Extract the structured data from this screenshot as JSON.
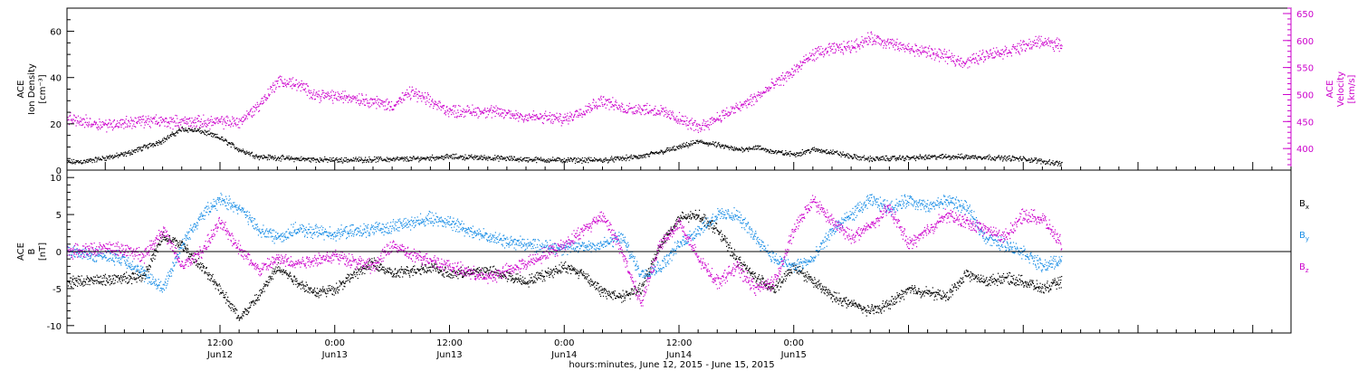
{
  "chart_data": [
    {
      "type": "scatter",
      "panel": "top",
      "ylabel_left": [
        "ACE",
        "Ion Density",
        "[cm⁻³]"
      ],
      "ylabel_right": [
        "ACE",
        "Velocity",
        "[km/s]"
      ],
      "ylim_left": [
        0,
        70
      ],
      "yticks_left": [
        0,
        20,
        40,
        60
      ],
      "ylim_right": [
        360,
        660
      ],
      "yticks_right": [
        400,
        450,
        500,
        550,
        600,
        650
      ],
      "series": [
        {
          "name": "Ion Density",
          "axis": "left",
          "color": "#000000",
          "points": [
            [
              -4,
              3.5
            ],
            [
              -2,
              4
            ],
            [
              0,
              5.5
            ],
            [
              2,
              7
            ],
            [
              4,
              10
            ],
            [
              6,
              13
            ],
            [
              8,
              18
            ],
            [
              10,
              17
            ],
            [
              12,
              14
            ],
            [
              14,
              9
            ],
            [
              16,
              6
            ],
            [
              20,
              5
            ],
            [
              24,
              4.5
            ],
            [
              28,
              4.8
            ],
            [
              32,
              5
            ],
            [
              36,
              6
            ],
            [
              40,
              5.5
            ],
            [
              44,
              4.8
            ],
            [
              48,
              4.5
            ],
            [
              52,
              4.5
            ],
            [
              56,
              6
            ],
            [
              58,
              8
            ],
            [
              60,
              10
            ],
            [
              62,
              12.5
            ],
            [
              64,
              11
            ],
            [
              66,
              9
            ],
            [
              68,
              10
            ],
            [
              70,
              8
            ],
            [
              72,
              7
            ],
            [
              74,
              9
            ],
            [
              76,
              8
            ],
            [
              78,
              6
            ],
            [
              80,
              5
            ],
            [
              84,
              5.5
            ],
            [
              88,
              6
            ],
            [
              92,
              5.8
            ],
            [
              96,
              5
            ],
            [
              100,
              3
            ]
          ]
        },
        {
          "name": "Velocity",
          "axis": "right",
          "color": "#cc00cc",
          "points": [
            [
              -4,
              455
            ],
            [
              0,
              445
            ],
            [
              4,
              452
            ],
            [
              8,
              450
            ],
            [
              12,
              450
            ],
            [
              14,
              450
            ],
            [
              16,
              480
            ],
            [
              18,
              525
            ],
            [
              20,
              520
            ],
            [
              22,
              500
            ],
            [
              26,
              495
            ],
            [
              30,
              480
            ],
            [
              32,
              505
            ],
            [
              36,
              470
            ],
            [
              40,
              470
            ],
            [
              44,
              460
            ],
            [
              48,
              455
            ],
            [
              52,
              490
            ],
            [
              54,
              475
            ],
            [
              56,
              475
            ],
            [
              58,
              470
            ],
            [
              60,
              455
            ],
            [
              62,
              440
            ],
            [
              64,
              458
            ],
            [
              66,
              475
            ],
            [
              68,
              495
            ],
            [
              70,
              520
            ],
            [
              72,
              545
            ],
            [
              74,
              575
            ],
            [
              76,
              585
            ],
            [
              78,
              590
            ],
            [
              80,
              605
            ],
            [
              82,
              595
            ],
            [
              84,
              585
            ],
            [
              86,
              580
            ],
            [
              88,
              570
            ],
            [
              90,
              560
            ],
            [
              92,
              575
            ],
            [
              94,
              580
            ],
            [
              96,
              590
            ],
            [
              98,
              600
            ],
            [
              100,
              590
            ]
          ]
        }
      ]
    },
    {
      "type": "scatter",
      "panel": "bottom",
      "ylabel_left": [
        "ACE",
        "B",
        "[nT]"
      ],
      "ylim": [
        -11,
        11
      ],
      "yticks": [
        -10,
        -5,
        0,
        5,
        10
      ],
      "zero_line": true,
      "legend": [
        {
          "label": "B",
          "sub": "x",
          "color": "#000000"
        },
        {
          "label": "B",
          "sub": "y",
          "color": "#1a8ee6"
        },
        {
          "label": "B",
          "sub": "z",
          "color": "#cc00cc"
        }
      ],
      "series": [
        {
          "name": "Bx",
          "color": "#000000",
          "points": [
            [
              -4,
              -4
            ],
            [
              0,
              -3.8
            ],
            [
              4,
              -3.2
            ],
            [
              6,
              2
            ],
            [
              8,
              1
            ],
            [
              10,
              -2
            ],
            [
              12,
              -5
            ],
            [
              14,
              -9
            ],
            [
              16,
              -6
            ],
            [
              18,
              -2
            ],
            [
              20,
              -4
            ],
            [
              22,
              -5.5
            ],
            [
              24,
              -5
            ],
            [
              26,
              -3
            ],
            [
              28,
              -1.5
            ],
            [
              30,
              -3
            ],
            [
              34,
              -2
            ],
            [
              36,
              -3
            ],
            [
              40,
              -2.5
            ],
            [
              44,
              -4
            ],
            [
              48,
              -2
            ],
            [
              50,
              -3
            ],
            [
              52,
              -5.5
            ],
            [
              54,
              -6
            ],
            [
              56,
              -5
            ],
            [
              58,
              1
            ],
            [
              60,
              4.5
            ],
            [
              62,
              5
            ],
            [
              64,
              3
            ],
            [
              66,
              -1
            ],
            [
              68,
              -3.5
            ],
            [
              70,
              -5
            ],
            [
              72,
              -2
            ],
            [
              74,
              -4
            ],
            [
              76,
              -6
            ],
            [
              78,
              -7
            ],
            [
              80,
              -8
            ],
            [
              82,
              -7
            ],
            [
              84,
              -5
            ],
            [
              86,
              -5.5
            ],
            [
              88,
              -6
            ],
            [
              90,
              -3
            ],
            [
              92,
              -4
            ],
            [
              94,
              -3.5
            ],
            [
              96,
              -4
            ],
            [
              98,
              -5
            ],
            [
              100,
              -4
            ]
          ]
        },
        {
          "name": "By",
          "color": "#1a8ee6",
          "points": [
            [
              -4,
              0
            ],
            [
              0,
              -0.5
            ],
            [
              2,
              -1
            ],
            [
              4,
              -3
            ],
            [
              6,
              -5
            ],
            [
              8,
              1
            ],
            [
              10,
              5
            ],
            [
              12,
              7
            ],
            [
              14,
              6
            ],
            [
              16,
              3
            ],
            [
              18,
              2
            ],
            [
              20,
              3
            ],
            [
              24,
              2.5
            ],
            [
              28,
              3
            ],
            [
              32,
              4
            ],
            [
              34,
              4.5
            ],
            [
              36,
              4
            ],
            [
              40,
              2
            ],
            [
              44,
              1
            ],
            [
              48,
              0.5
            ],
            [
              52,
              1
            ],
            [
              54,
              2
            ],
            [
              56,
              -3
            ],
            [
              58,
              -2
            ],
            [
              60,
              1
            ],
            [
              62,
              3
            ],
            [
              64,
              5
            ],
            [
              66,
              5
            ],
            [
              68,
              2
            ],
            [
              70,
              -1
            ],
            [
              72,
              -2
            ],
            [
              74,
              -1
            ],
            [
              76,
              3
            ],
            [
              78,
              5
            ],
            [
              80,
              7
            ],
            [
              82,
              6
            ],
            [
              84,
              7
            ],
            [
              86,
              6
            ],
            [
              88,
              7
            ],
            [
              90,
              6
            ],
            [
              92,
              2
            ],
            [
              94,
              1
            ],
            [
              96,
              0
            ],
            [
              98,
              -2
            ],
            [
              100,
              -1
            ]
          ]
        },
        {
          "name": "Bz",
          "color": "#cc00cc",
          "points": [
            [
              -4,
              0
            ],
            [
              0,
              0.5
            ],
            [
              2,
              0.3
            ],
            [
              4,
              -0.5
            ],
            [
              6,
              3
            ],
            [
              8,
              -2
            ],
            [
              10,
              0
            ],
            [
              12,
              4
            ],
            [
              14,
              0.5
            ],
            [
              16,
              -2.5
            ],
            [
              18,
              -1
            ],
            [
              20,
              -1.5
            ],
            [
              24,
              -0.5
            ],
            [
              28,
              -2
            ],
            [
              30,
              1
            ],
            [
              32,
              -0.5
            ],
            [
              34,
              -1
            ],
            [
              36,
              -2
            ],
            [
              40,
              -3.5
            ],
            [
              44,
              -1.5
            ],
            [
              48,
              1
            ],
            [
              50,
              3
            ],
            [
              52,
              5
            ],
            [
              54,
              0
            ],
            [
              56,
              -7
            ],
            [
              58,
              1
            ],
            [
              60,
              4
            ],
            [
              62,
              -1
            ],
            [
              64,
              -4
            ],
            [
              66,
              -2
            ],
            [
              68,
              -5
            ],
            [
              70,
              -4
            ],
            [
              72,
              3
            ],
            [
              74,
              7
            ],
            [
              76,
              4
            ],
            [
              78,
              2
            ],
            [
              80,
              3.5
            ],
            [
              82,
              6
            ],
            [
              84,
              1
            ],
            [
              86,
              3
            ],
            [
              88,
              5
            ],
            [
              90,
              4
            ],
            [
              92,
              3
            ],
            [
              94,
              2
            ],
            [
              96,
              5
            ],
            [
              98,
              4.5
            ],
            [
              100,
              1
            ]
          ]
        }
      ]
    }
  ],
  "x_axis": {
    "xlim_hours": [
      -4,
      124
    ],
    "major_ticks": [
      {
        "hour": 12,
        "time": "12:00",
        "date": "Jun12"
      },
      {
        "hour": 24,
        "time": "0:00",
        "date": "Jun13"
      },
      {
        "hour": 36,
        "time": "12:00",
        "date": "Jun13"
      },
      {
        "hour": 48,
        "time": "0:00",
        "date": "Jun14"
      },
      {
        "hour": 60,
        "time": "12:00",
        "date": "Jun14"
      },
      {
        "hour": 72,
        "time": "0:00",
        "date": "Jun15"
      }
    ],
    "xlabel": "hours:minutes, June 12, 2015 - June 15, 2015"
  }
}
